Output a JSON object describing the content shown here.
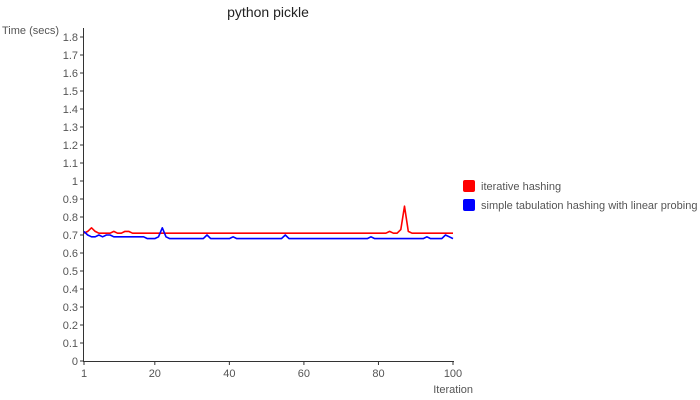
{
  "chart_data": {
    "type": "line",
    "title": "python pickle",
    "xlabel": "Iteration",
    "ylabel": "Time (secs)",
    "xlim": [
      1,
      100
    ],
    "ylim": [
      0,
      1.85
    ],
    "xticks": [
      1,
      20,
      40,
      60,
      80,
      100
    ],
    "xtick_labels": [
      "1",
      "20",
      "40",
      "60",
      "80",
      "100"
    ],
    "yticks": [
      0,
      0.1,
      0.2,
      0.3,
      0.4,
      0.5,
      0.6,
      0.7,
      0.8,
      0.9,
      1,
      1.1,
      1.2,
      1.3,
      1.4,
      1.5,
      1.6,
      1.7,
      1.8
    ],
    "ytick_labels": [
      "0",
      "0.1",
      "0.2",
      "0.3",
      "0.4",
      "0.5",
      "0.6",
      "0.7",
      "0.8",
      "0.9",
      "1",
      "1.1",
      "1.2",
      "1.3",
      "1.4",
      "1.5",
      "1.6",
      "1.7",
      "1.8"
    ],
    "grid": false,
    "legend_position": "right",
    "series": [
      {
        "name": "iterative hashing",
        "color": "#ff0000",
        "x": [
          1,
          2,
          3,
          4,
          5,
          6,
          7,
          8,
          9,
          10,
          11,
          12,
          13,
          14,
          15,
          16,
          17,
          18,
          19,
          20,
          21,
          22,
          23,
          24,
          25,
          26,
          27,
          28,
          29,
          30,
          31,
          32,
          33,
          34,
          35,
          36,
          37,
          38,
          39,
          40,
          41,
          42,
          43,
          44,
          45,
          46,
          47,
          48,
          49,
          50,
          51,
          52,
          53,
          54,
          55,
          56,
          57,
          58,
          59,
          60,
          61,
          62,
          63,
          64,
          65,
          66,
          67,
          68,
          69,
          70,
          71,
          72,
          73,
          74,
          75,
          76,
          77,
          78,
          79,
          80,
          81,
          82,
          83,
          84,
          85,
          86,
          87,
          88,
          89,
          90,
          91,
          92,
          93,
          94,
          95,
          96,
          97,
          98,
          99,
          100
        ],
        "values": [
          0.71,
          0.72,
          0.74,
          0.72,
          0.71,
          0.71,
          0.71,
          0.71,
          0.72,
          0.71,
          0.71,
          0.72,
          0.72,
          0.71,
          0.71,
          0.71,
          0.71,
          0.71,
          0.71,
          0.71,
          0.71,
          0.71,
          0.71,
          0.71,
          0.71,
          0.71,
          0.71,
          0.71,
          0.71,
          0.71,
          0.71,
          0.71,
          0.71,
          0.71,
          0.71,
          0.71,
          0.71,
          0.71,
          0.71,
          0.71,
          0.71,
          0.71,
          0.71,
          0.71,
          0.71,
          0.71,
          0.71,
          0.71,
          0.71,
          0.71,
          0.71,
          0.71,
          0.71,
          0.71,
          0.71,
          0.71,
          0.71,
          0.71,
          0.71,
          0.71,
          0.71,
          0.71,
          0.71,
          0.71,
          0.71,
          0.71,
          0.71,
          0.71,
          0.71,
          0.71,
          0.71,
          0.71,
          0.71,
          0.71,
          0.71,
          0.71,
          0.71,
          0.71,
          0.71,
          0.71,
          0.71,
          0.71,
          0.72,
          0.71,
          0.71,
          0.73,
          0.86,
          0.72,
          0.71,
          0.71,
          0.71,
          0.71,
          0.71,
          0.71,
          0.71,
          0.71,
          0.71,
          0.71,
          0.71,
          0.71
        ]
      },
      {
        "name": "simple tabulation hashing with linear probing",
        "color": "#0000ff",
        "x": [
          1,
          2,
          3,
          4,
          5,
          6,
          7,
          8,
          9,
          10,
          11,
          12,
          13,
          14,
          15,
          16,
          17,
          18,
          19,
          20,
          21,
          22,
          23,
          24,
          25,
          26,
          27,
          28,
          29,
          30,
          31,
          32,
          33,
          34,
          35,
          36,
          37,
          38,
          39,
          40,
          41,
          42,
          43,
          44,
          45,
          46,
          47,
          48,
          49,
          50,
          51,
          52,
          53,
          54,
          55,
          56,
          57,
          58,
          59,
          60,
          61,
          62,
          63,
          64,
          65,
          66,
          67,
          68,
          69,
          70,
          71,
          72,
          73,
          74,
          75,
          76,
          77,
          78,
          79,
          80,
          81,
          82,
          83,
          84,
          85,
          86,
          87,
          88,
          89,
          90,
          91,
          92,
          93,
          94,
          95,
          96,
          97,
          98,
          99,
          100
        ],
        "values": [
          0.72,
          0.7,
          0.69,
          0.69,
          0.7,
          0.69,
          0.7,
          0.7,
          0.69,
          0.69,
          0.69,
          0.69,
          0.69,
          0.69,
          0.69,
          0.69,
          0.69,
          0.68,
          0.68,
          0.68,
          0.69,
          0.74,
          0.69,
          0.68,
          0.68,
          0.68,
          0.68,
          0.68,
          0.68,
          0.68,
          0.68,
          0.68,
          0.68,
          0.7,
          0.68,
          0.68,
          0.68,
          0.68,
          0.68,
          0.68,
          0.69,
          0.68,
          0.68,
          0.68,
          0.68,
          0.68,
          0.68,
          0.68,
          0.68,
          0.68,
          0.68,
          0.68,
          0.68,
          0.68,
          0.7,
          0.68,
          0.68,
          0.68,
          0.68,
          0.68,
          0.68,
          0.68,
          0.68,
          0.68,
          0.68,
          0.68,
          0.68,
          0.68,
          0.68,
          0.68,
          0.68,
          0.68,
          0.68,
          0.68,
          0.68,
          0.68,
          0.68,
          0.69,
          0.68,
          0.68,
          0.68,
          0.68,
          0.68,
          0.68,
          0.68,
          0.68,
          0.68,
          0.68,
          0.68,
          0.68,
          0.68,
          0.68,
          0.69,
          0.68,
          0.68,
          0.68,
          0.68,
          0.7,
          0.69,
          0.68
        ]
      }
    ]
  }
}
